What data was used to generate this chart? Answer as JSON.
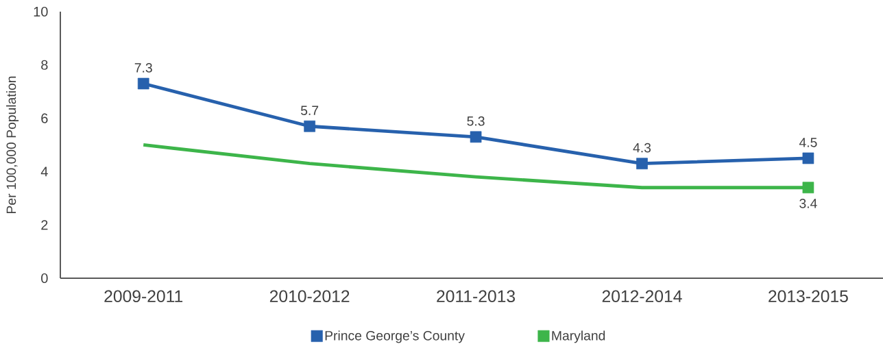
{
  "chart_data": {
    "type": "line",
    "ylabel": "Per 100,000 Population",
    "categories": [
      "2009-2011",
      "2010-2012",
      "2011-2013",
      "2012-2014",
      "2013-2015"
    ],
    "series": [
      {
        "name": "Prince George’s County",
        "color": "#2761ad",
        "values": [
          7.3,
          5.7,
          5.3,
          4.3,
          4.5
        ],
        "value_labels": [
          "7.3",
          "5.7",
          "5.3",
          "4.3",
          "4.5"
        ],
        "marker": "square"
      },
      {
        "name": "Maryland",
        "color": "#3db54a",
        "values": [
          5.0,
          4.3,
          3.8,
          3.4,
          3.4
        ],
        "marker": "none"
      },
      {
        "type": "scatter",
        "color": "#3db54a",
        "x": [
          "2013-2015"
        ],
        "values": [
          3.4
        ],
        "value_labels": [
          "3.4"
        ],
        "marker": "square"
      }
    ],
    "ylim": [
      0,
      10
    ],
    "yticks": [
      0,
      2,
      4,
      6,
      8,
      10
    ],
    "grid": false,
    "legend": "bottom",
    "line_style": "solid"
  }
}
